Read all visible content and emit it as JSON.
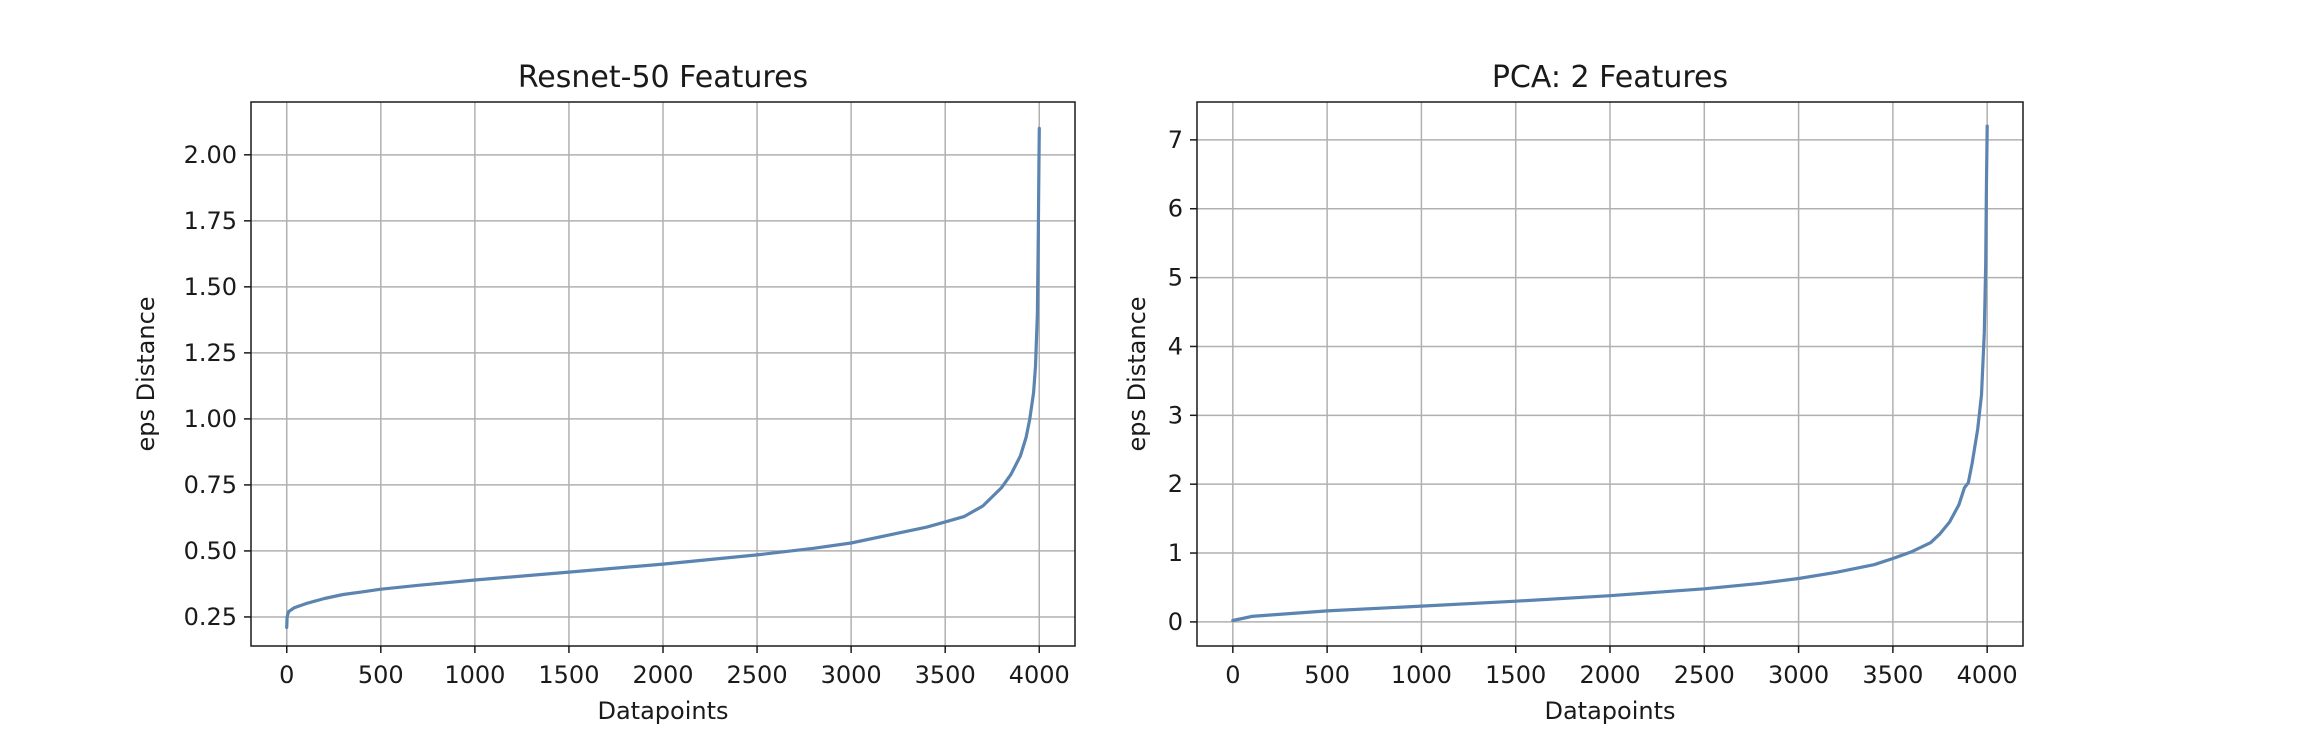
{
  "figure": {
    "background": "#ffffff"
  },
  "chart_data": [
    {
      "type": "line",
      "title": "Resnet-50 Features",
      "xlabel": "Datapoints",
      "ylabel": "eps Distance",
      "xlim": [
        -190,
        4190
      ],
      "ylim": [
        0.14,
        2.2
      ],
      "xticks": [
        0,
        500,
        1000,
        1500,
        2000,
        2500,
        3000,
        3500,
        4000
      ],
      "yticks": [
        0.25,
        0.5,
        0.75,
        1.0,
        1.25,
        1.5,
        1.75,
        2.0
      ],
      "ytick_labels": [
        "0.25",
        "0.50",
        "0.75",
        "1.00",
        "1.25",
        "1.50",
        "1.75",
        "2.00"
      ],
      "grid": true,
      "series": [
        {
          "color": "#5b84b1",
          "x": [
            0,
            2,
            10,
            40,
            100,
            200,
            300,
            400,
            500,
            700,
            1000,
            1500,
            2000,
            2500,
            2800,
            3000,
            3200,
            3400,
            3500,
            3600,
            3700,
            3800,
            3850,
            3900,
            3930,
            3950,
            3970,
            3980,
            3990,
            3995,
            3998,
            4000
          ],
          "y": [
            0.21,
            0.25,
            0.27,
            0.285,
            0.3,
            0.32,
            0.335,
            0.345,
            0.355,
            0.37,
            0.39,
            0.42,
            0.45,
            0.485,
            0.51,
            0.53,
            0.56,
            0.59,
            0.61,
            0.63,
            0.67,
            0.74,
            0.79,
            0.86,
            0.93,
            1.0,
            1.1,
            1.2,
            1.4,
            1.7,
            1.95,
            2.1
          ]
        }
      ]
    },
    {
      "type": "line",
      "title": "PCA: 2 Features",
      "xlabel": "Datapoints",
      "ylabel": "eps Distance",
      "xlim": [
        -190,
        4190
      ],
      "ylim": [
        -0.35,
        7.55
      ],
      "xticks": [
        0,
        500,
        1000,
        1500,
        2000,
        2500,
        3000,
        3500,
        4000
      ],
      "yticks": [
        0,
        1,
        2,
        3,
        4,
        5,
        6,
        7
      ],
      "ytick_labels": [
        "0",
        "1",
        "2",
        "3",
        "4",
        "5",
        "6",
        "7"
      ],
      "grid": true,
      "series": [
        {
          "color": "#5b84b1",
          "x": [
            0,
            50,
            100,
            200,
            500,
            1000,
            1500,
            2000,
            2500,
            2800,
            3000,
            3200,
            3400,
            3500,
            3600,
            3700,
            3750,
            3800,
            3850,
            3880,
            3900,
            3920,
            3950,
            3970,
            3985,
            3992,
            3996,
            4000
          ],
          "y": [
            0.02,
            0.05,
            0.08,
            0.1,
            0.16,
            0.23,
            0.3,
            0.38,
            0.48,
            0.56,
            0.63,
            0.72,
            0.83,
            0.92,
            1.02,
            1.15,
            1.28,
            1.45,
            1.7,
            1.95,
            2.02,
            2.3,
            2.8,
            3.3,
            4.2,
            5.2,
            6.3,
            7.2
          ]
        }
      ]
    }
  ]
}
